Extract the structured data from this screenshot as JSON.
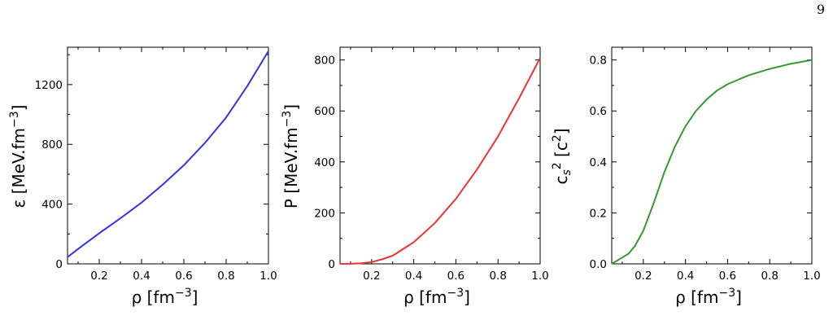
{
  "page": {
    "number": "9"
  },
  "chart_data": [
    {
      "type": "line",
      "xlabel": "ρ [fm⁻³]",
      "ylabel": "ε [MeV.fm⁻³]",
      "xlim": [
        0.05,
        1.0
      ],
      "ylim": [
        0,
        1450
      ],
      "xticks": [
        0.2,
        0.4,
        0.6,
        0.8,
        1.0
      ],
      "xtick_labels": [
        "0.2",
        "0.4",
        "0.6",
        "0.8",
        "1.0"
      ],
      "yticks": [
        0,
        400,
        800,
        1200
      ],
      "ytick_labels": [
        "0",
        "400",
        "800",
        "1200"
      ],
      "grid": false,
      "series": [
        {
          "color": "#3333ee",
          "x": [
            0.05,
            0.1,
            0.2,
            0.3,
            0.4,
            0.5,
            0.6,
            0.7,
            0.8,
            0.9,
            1.0
          ],
          "y": [
            45,
            100,
            205,
            305,
            410,
            530,
            660,
            810,
            980,
            1190,
            1425
          ]
        }
      ]
    },
    {
      "type": "line",
      "xlabel": "ρ [fm⁻³]",
      "ylabel": "P [MeV.fm⁻³]",
      "xlim": [
        0.05,
        1.0
      ],
      "ylim": [
        0,
        850
      ],
      "xticks": [
        0.2,
        0.4,
        0.6,
        0.8,
        1.0
      ],
      "xtick_labels": [
        "0.2",
        "0.4",
        "0.6",
        "0.8",
        "1.0"
      ],
      "yticks": [
        0,
        200,
        400,
        600,
        800
      ],
      "ytick_labels": [
        "0",
        "200",
        "400",
        "600",
        "800"
      ],
      "grid": false,
      "series": [
        {
          "color": "#ee3333",
          "x": [
            0.05,
            0.1,
            0.15,
            0.2,
            0.25,
            0.3,
            0.4,
            0.5,
            0.6,
            0.7,
            0.8,
            0.9,
            1.0
          ],
          "y": [
            0,
            0.5,
            2,
            7,
            18,
            32,
            85,
            160,
            255,
            370,
            500,
            650,
            808
          ]
        }
      ]
    },
    {
      "type": "line",
      "xlabel": "ρ [fm⁻³]",
      "ylabel": "c_s² [c²]",
      "xlim": [
        0.05,
        1.0
      ],
      "ylim": [
        0,
        0.85
      ],
      "xticks": [
        0.2,
        0.4,
        0.6,
        0.8,
        1.0
      ],
      "xtick_labels": [
        "0.2",
        "0.4",
        "0.6",
        "0.8",
        "1.0"
      ],
      "yticks": [
        0.0,
        0.2,
        0.4,
        0.6,
        0.8
      ],
      "ytick_labels": [
        "0.0",
        "0.2",
        "0.4",
        "0.6",
        "0.8"
      ],
      "grid": false,
      "series": [
        {
          "color": "#339933",
          "x": [
            0.05,
            0.08,
            0.1,
            0.13,
            0.16,
            0.2,
            0.25,
            0.3,
            0.35,
            0.4,
            0.45,
            0.5,
            0.55,
            0.6,
            0.7,
            0.8,
            0.9,
            1.0
          ],
          "y": [
            0.0,
            0.015,
            0.025,
            0.04,
            0.07,
            0.13,
            0.24,
            0.36,
            0.46,
            0.54,
            0.6,
            0.645,
            0.68,
            0.705,
            0.74,
            0.765,
            0.785,
            0.8
          ]
        }
      ]
    }
  ]
}
